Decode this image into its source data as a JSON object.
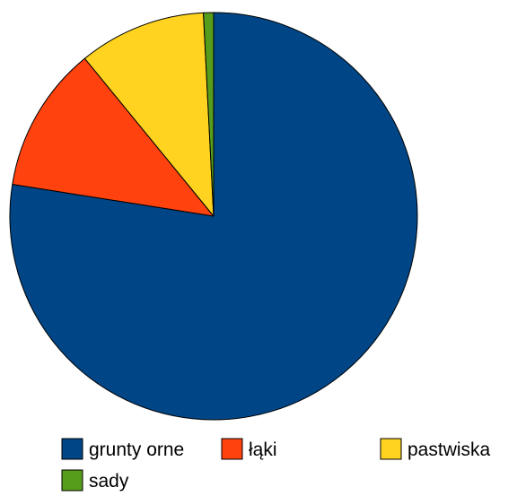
{
  "chart_data": {
    "type": "pie",
    "title": "",
    "slices": [
      {
        "label": "grunty orne",
        "value": 77.5,
        "color": "#004586"
      },
      {
        "label": "łąki",
        "value": 11.6,
        "color": "#ff420e"
      },
      {
        "label": "pastwiska",
        "value": 10.1,
        "color": "#ffd320"
      },
      {
        "label": "sady",
        "value": 0.8,
        "color": "#579d1c"
      }
    ],
    "start_angle": "top",
    "direction": "clockwise",
    "legend": {
      "placement": "bottom"
    }
  }
}
